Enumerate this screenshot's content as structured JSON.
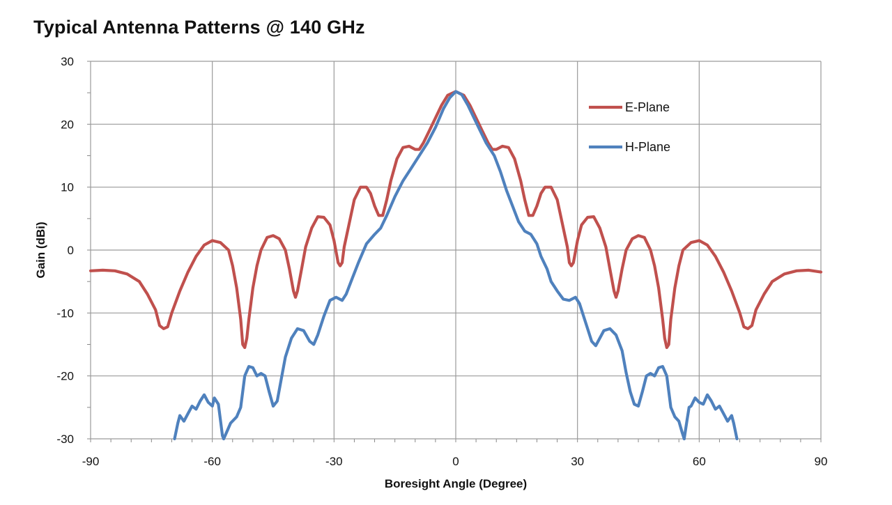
{
  "chart_data": {
    "type": "line",
    "title": "Typical Antenna Patterns @ 140 GHz",
    "xlabel": "Boresight Angle (Degree)",
    "ylabel": "Gain (dBi)",
    "xlim": [
      -90,
      90
    ],
    "ylim": [
      -30,
      30
    ],
    "xticks": [
      -90,
      -60,
      -30,
      0,
      30,
      60,
      90
    ],
    "yticks": [
      -30,
      -20,
      -10,
      0,
      10,
      20,
      30
    ],
    "grid": true,
    "legend_position": "upper-right",
    "series": [
      {
        "name": "E-Plane",
        "color": "#c0504d",
        "points": [
          [
            -90,
            -3.3
          ],
          [
            -87,
            -3.2
          ],
          [
            -84,
            -3.3
          ],
          [
            -81,
            -3.8
          ],
          [
            -78,
            -5
          ],
          [
            -76,
            -7
          ],
          [
            -74,
            -9.5
          ],
          [
            -73,
            -12
          ],
          [
            -72,
            -12.5
          ],
          [
            -71,
            -12.2
          ],
          [
            -70,
            -10
          ],
          [
            -68,
            -6.5
          ],
          [
            -66,
            -3.5
          ],
          [
            -64,
            -1
          ],
          [
            -62,
            0.8
          ],
          [
            -60,
            1.5
          ],
          [
            -58,
            1.2
          ],
          [
            -56,
            0
          ],
          [
            -55,
            -2.5
          ],
          [
            -54,
            -6
          ],
          [
            -53,
            -11
          ],
          [
            -52.5,
            -15
          ],
          [
            -52,
            -15.5
          ],
          [
            -51.5,
            -14
          ],
          [
            -51,
            -11
          ],
          [
            -50,
            -6
          ],
          [
            -49,
            -2.5
          ],
          [
            -48,
            0
          ],
          [
            -46.5,
            2
          ],
          [
            -45,
            2.3
          ],
          [
            -43.5,
            1.8
          ],
          [
            -42,
            0
          ],
          [
            -41,
            -3
          ],
          [
            -40,
            -6.5
          ],
          [
            -39.5,
            -7.5
          ],
          [
            -39,
            -6.5
          ],
          [
            -38,
            -3
          ],
          [
            -37,
            0.5
          ],
          [
            -35.5,
            3.5
          ],
          [
            -34,
            5.3
          ],
          [
            -32.5,
            5.2
          ],
          [
            -31,
            4
          ],
          [
            -30,
            1.5
          ],
          [
            -29,
            -2
          ],
          [
            -28.5,
            -2.5
          ],
          [
            -28,
            -2
          ],
          [
            -27.5,
            0.5
          ],
          [
            -26,
            5
          ],
          [
            -25,
            8
          ],
          [
            -23.5,
            10
          ],
          [
            -22,
            10
          ],
          [
            -21,
            9
          ],
          [
            -20,
            7
          ],
          [
            -19,
            5.5
          ],
          [
            -18,
            5.5
          ],
          [
            -17,
            8
          ],
          [
            -16,
            11
          ],
          [
            -14.5,
            14.5
          ],
          [
            -13,
            16.3
          ],
          [
            -11.5,
            16.5
          ],
          [
            -10,
            16
          ],
          [
            -9,
            16
          ],
          [
            -8,
            17
          ],
          [
            -6.5,
            19
          ],
          [
            -5,
            21
          ],
          [
            -3.5,
            23
          ],
          [
            -2,
            24.6
          ],
          [
            0,
            25.2
          ],
          [
            2,
            24.6
          ],
          [
            3.5,
            23
          ],
          [
            5,
            21
          ],
          [
            6.5,
            19
          ],
          [
            8,
            17
          ],
          [
            9,
            16
          ],
          [
            10,
            16
          ],
          [
            11.5,
            16.5
          ],
          [
            13,
            16.3
          ],
          [
            14.5,
            14.5
          ],
          [
            16,
            11
          ],
          [
            17,
            8
          ],
          [
            18,
            5.5
          ],
          [
            19,
            5.5
          ],
          [
            20,
            7
          ],
          [
            21,
            9
          ],
          [
            22,
            10
          ],
          [
            23.5,
            10
          ],
          [
            25,
            8
          ],
          [
            26,
            5
          ],
          [
            27.5,
            0.5
          ],
          [
            28,
            -2
          ],
          [
            28.5,
            -2.5
          ],
          [
            29,
            -2
          ],
          [
            30,
            1.5
          ],
          [
            31,
            4
          ],
          [
            32.5,
            5.2
          ],
          [
            34,
            5.3
          ],
          [
            35.5,
            3.5
          ],
          [
            37,
            0.5
          ],
          [
            38,
            -3
          ],
          [
            39,
            -6.5
          ],
          [
            39.5,
            -7.5
          ],
          [
            40,
            -6.5
          ],
          [
            41,
            -3
          ],
          [
            42,
            0
          ],
          [
            43.5,
            1.8
          ],
          [
            45,
            2.3
          ],
          [
            46.5,
            2
          ],
          [
            48,
            0
          ],
          [
            49,
            -2.5
          ],
          [
            50,
            -6
          ],
          [
            51,
            -11
          ],
          [
            51.5,
            -14
          ],
          [
            52,
            -15.5
          ],
          [
            52.5,
            -15
          ],
          [
            53,
            -11
          ],
          [
            54,
            -6
          ],
          [
            55,
            -2.5
          ],
          [
            56,
            0
          ],
          [
            58,
            1.2
          ],
          [
            60,
            1.5
          ],
          [
            62,
            0.8
          ],
          [
            64,
            -1
          ],
          [
            66,
            -3.5
          ],
          [
            68,
            -6.5
          ],
          [
            70,
            -10
          ],
          [
            71,
            -12.2
          ],
          [
            72,
            -12.5
          ],
          [
            73,
            -12
          ],
          [
            74,
            -9.5
          ],
          [
            76,
            -7
          ],
          [
            78,
            -5
          ],
          [
            81,
            -3.8
          ],
          [
            84,
            -3.3
          ],
          [
            87,
            -3.2
          ],
          [
            90,
            -3.5
          ]
        ]
      },
      {
        "name": "H-Plane",
        "color": "#4f81bd",
        "segments": [
          [
            [
              -69.3,
              -30
            ],
            [
              -68.5,
              -27.5
            ],
            [
              -68,
              -26.3
            ],
            [
              -67,
              -27.2
            ],
            [
              -66,
              -26
            ],
            [
              -65,
              -24.8
            ],
            [
              -64,
              -25.3
            ],
            [
              -63,
              -24
            ],
            [
              -62,
              -23
            ],
            [
              -61,
              -24.2
            ],
            [
              -60,
              -24.8
            ],
            [
              -59.5,
              -23.5
            ],
            [
              -58.5,
              -24.5
            ],
            [
              -58,
              -27
            ],
            [
              -57.5,
              -29.5
            ],
            [
              -57.2,
              -30
            ]
          ],
          [
            [
              -57.2,
              -30
            ],
            [
              -56.5,
              -29
            ],
            [
              -55.5,
              -27.5
            ],
            [
              -54,
              -26.5
            ],
            [
              -53,
              -25
            ],
            [
              -52,
              -20
            ],
            [
              -51,
              -18.5
            ],
            [
              -50,
              -18.7
            ],
            [
              -49,
              -20
            ],
            [
              -48,
              -19.6
            ],
            [
              -47,
              -20
            ],
            [
              -46,
              -22.5
            ],
            [
              -45,
              -24.8
            ],
            [
              -44,
              -24
            ],
            [
              -43,
              -20.5
            ],
            [
              -42,
              -17
            ],
            [
              -40.5,
              -14
            ],
            [
              -39,
              -12.5
            ],
            [
              -37.5,
              -12.8
            ],
            [
              -36,
              -14.5
            ],
            [
              -35,
              -15
            ],
            [
              -34,
              -13.5
            ],
            [
              -32.5,
              -10.5
            ],
            [
              -31,
              -8
            ],
            [
              -29.5,
              -7.5
            ],
            [
              -28,
              -8
            ],
            [
              -27,
              -7
            ],
            [
              -25.5,
              -4.5
            ],
            [
              -24,
              -2
            ],
            [
              -22,
              1
            ],
            [
              -20,
              2.5
            ],
            [
              -18.5,
              3.5
            ],
            [
              -17,
              5.5
            ],
            [
              -15,
              8.5
            ],
            [
              -13,
              11
            ],
            [
              -11,
              13
            ],
            [
              -9,
              15
            ],
            [
              -7,
              17
            ],
            [
              -5,
              19.5
            ],
            [
              -3,
              22.5
            ],
            [
              -1.5,
              24.2
            ],
            [
              0,
              25.2
            ],
            [
              1.5,
              24.7
            ],
            [
              3,
              23
            ],
            [
              4.5,
              21
            ],
            [
              6,
              19
            ],
            [
              7.5,
              17
            ],
            [
              9.5,
              15
            ],
            [
              11,
              12.5
            ],
            [
              12.5,
              9.5
            ],
            [
              14,
              7
            ],
            [
              15.5,
              4.5
            ],
            [
              17,
              3
            ],
            [
              18.5,
              2.5
            ],
            [
              20,
              1
            ],
            [
              21,
              -1
            ],
            [
              22.5,
              -3
            ],
            [
              23.5,
              -5
            ],
            [
              25,
              -6.5
            ],
            [
              26.5,
              -7.8
            ],
            [
              28,
              -8
            ],
            [
              29.5,
              -7.5
            ],
            [
              30.5,
              -8.5
            ],
            [
              31.5,
              -10.5
            ],
            [
              32.5,
              -12.5
            ],
            [
              33.5,
              -14.5
            ],
            [
              34.5,
              -15.2
            ],
            [
              35.5,
              -14
            ],
            [
              36.5,
              -12.8
            ],
            [
              38,
              -12.5
            ],
            [
              39.5,
              -13.5
            ],
            [
              41,
              -16
            ],
            [
              42,
              -19.5
            ],
            [
              43,
              -22.5
            ],
            [
              44,
              -24.5
            ],
            [
              45,
              -24.8
            ],
            [
              46,
              -22.5
            ],
            [
              47,
              -20
            ],
            [
              48,
              -19.6
            ],
            [
              49,
              -20
            ],
            [
              50,
              -18.7
            ],
            [
              51,
              -18.5
            ],
            [
              52,
              -20
            ],
            [
              53,
              -25
            ],
            [
              54,
              -26.5
            ],
            [
              55,
              -27.2
            ],
            [
              55.8,
              -29
            ],
            [
              56.3,
              -30
            ]
          ],
          [
            [
              56.3,
              -30
            ],
            [
              57,
              -27
            ],
            [
              57.5,
              -25
            ],
            [
              58,
              -24.8
            ],
            [
              59,
              -23.5
            ],
            [
              60,
              -24.2
            ],
            [
              61,
              -24.5
            ],
            [
              62,
              -23
            ],
            [
              63,
              -24
            ],
            [
              64,
              -25.3
            ],
            [
              65,
              -24.8
            ],
            [
              66,
              -26
            ],
            [
              67,
              -27.2
            ],
            [
              68,
              -26.3
            ],
            [
              68.5,
              -27.5
            ],
            [
              69.3,
              -30
            ]
          ]
        ]
      }
    ]
  }
}
